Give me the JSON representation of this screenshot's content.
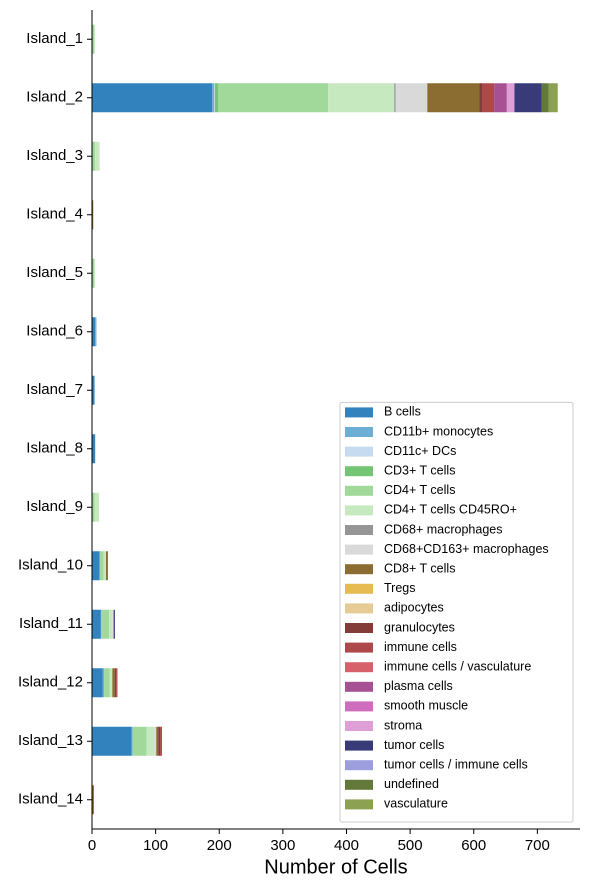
{
  "chart_data": {
    "type": "stacked-barh",
    "xlabel": "Number of Cells",
    "categories": [
      "Island_1",
      "Island_2",
      "Island_3",
      "Island_4",
      "Island_5",
      "Island_6",
      "Island_7",
      "Island_8",
      "Island_9",
      "Island_10",
      "Island_11",
      "Island_12",
      "Island_13",
      "Island_14"
    ],
    "xlim": [
      0,
      767
    ],
    "xticks": [
      0,
      100,
      200,
      300,
      400,
      500,
      600,
      700
    ],
    "legend": "lower right",
    "series": [
      {
        "name": "B cells",
        "color": "#3182bd",
        "values": [
          0,
          189,
          0,
          0,
          0,
          5,
          4,
          5,
          0,
          12,
          14,
          17,
          62,
          0
        ]
      },
      {
        "name": "CD11b+ monocytes",
        "color": "#6baed6",
        "values": [
          0,
          3,
          0,
          0,
          0,
          2,
          0,
          0,
          0,
          0,
          0,
          2,
          2,
          0
        ]
      },
      {
        "name": "CD11c+ DCs",
        "color": "#c6dbef",
        "values": [
          0,
          1,
          0,
          0,
          0,
          0,
          0,
          0,
          0,
          0,
          0,
          0,
          0,
          0
        ]
      },
      {
        "name": "CD3+ T cells",
        "color": "#74c476",
        "values": [
          0,
          5,
          0,
          0,
          0,
          0,
          0,
          0,
          0,
          0,
          0,
          0,
          0,
          0
        ]
      },
      {
        "name": "CD4+ T cells",
        "color": "#a1d99b",
        "values": [
          4,
          173,
          5,
          0,
          4,
          0,
          0,
          0,
          4,
          6,
          13,
          9,
          22,
          0
        ]
      },
      {
        "name": "CD4+ T cells CD45RO+",
        "color": "#c7e9c0",
        "values": [
          0,
          104,
          7,
          0,
          0,
          0,
          0,
          0,
          7,
          4,
          5,
          4,
          12,
          0
        ]
      },
      {
        "name": "CD68+ macrophages",
        "color": "#969696",
        "values": [
          0,
          2,
          0,
          0,
          0,
          0,
          0,
          0,
          0,
          0,
          0,
          0,
          0,
          0
        ]
      },
      {
        "name": "CD68+CD163+ macrophages",
        "color": "#d9d9d9",
        "values": [
          0,
          50,
          0,
          0,
          0,
          0,
          0,
          0,
          0,
          0,
          2,
          0,
          3,
          0
        ]
      },
      {
        "name": "CD8+ T cells",
        "color": "#8c6d31",
        "values": [
          0,
          82,
          0,
          2,
          0,
          0,
          0,
          0,
          0,
          3,
          0,
          4,
          3,
          3
        ]
      },
      {
        "name": "Tregs",
        "color": "#e7ba52",
        "values": [
          0,
          0,
          0,
          0,
          0,
          0,
          0,
          0,
          0,
          0,
          0,
          0,
          0,
          0
        ]
      },
      {
        "name": "adipocytes",
        "color": "#e7cb94",
        "values": [
          0,
          0,
          0,
          0,
          0,
          0,
          0,
          0,
          0,
          0,
          0,
          0,
          0,
          0
        ]
      },
      {
        "name": "granulocytes",
        "color": "#843c39",
        "values": [
          0,
          4,
          0,
          0,
          0,
          0,
          0,
          0,
          0,
          0,
          0,
          2,
          3,
          0
        ]
      },
      {
        "name": "immune cells",
        "color": "#ad494a",
        "values": [
          0,
          19,
          0,
          0,
          0,
          0,
          0,
          0,
          0,
          0,
          0,
          2,
          3,
          0
        ]
      },
      {
        "name": "immune cells / vasculature",
        "color": "#d6616b",
        "values": [
          0,
          0,
          0,
          0,
          0,
          0,
          0,
          0,
          0,
          0,
          0,
          0,
          0,
          0
        ]
      },
      {
        "name": "plasma cells",
        "color": "#a55194",
        "values": [
          0,
          20,
          0,
          0,
          0,
          0,
          0,
          0,
          0,
          0,
          0,
          0,
          0,
          0
        ]
      },
      {
        "name": "smooth muscle",
        "color": "#ce6dbd",
        "values": [
          0,
          0,
          0,
          0,
          0,
          0,
          0,
          0,
          0,
          0,
          0,
          0,
          0,
          0
        ]
      },
      {
        "name": "stroma",
        "color": "#de9ed6",
        "values": [
          0,
          12,
          0,
          0,
          0,
          0,
          0,
          0,
          0,
          0,
          0,
          0,
          0,
          0
        ]
      },
      {
        "name": "tumor cells",
        "color": "#393b79",
        "values": [
          0,
          43,
          0,
          0,
          0,
          0,
          0,
          0,
          0,
          0,
          2,
          0,
          0,
          0
        ]
      },
      {
        "name": "tumor cells / immune cells",
        "color": "#9c9ede",
        "values": [
          0,
          0,
          0,
          0,
          0,
          0,
          0,
          0,
          0,
          0,
          0,
          0,
          0,
          0
        ]
      },
      {
        "name": "undefined",
        "color": "#637939",
        "values": [
          0,
          11,
          0,
          0,
          0,
          0,
          0,
          0,
          0,
          0,
          0,
          0,
          0,
          0
        ]
      },
      {
        "name": "vasculature",
        "color": "#8ca252",
        "values": [
          0,
          14,
          0,
          0,
          0,
          0,
          0,
          0,
          0,
          0,
          0,
          0,
          0,
          0
        ]
      }
    ]
  }
}
